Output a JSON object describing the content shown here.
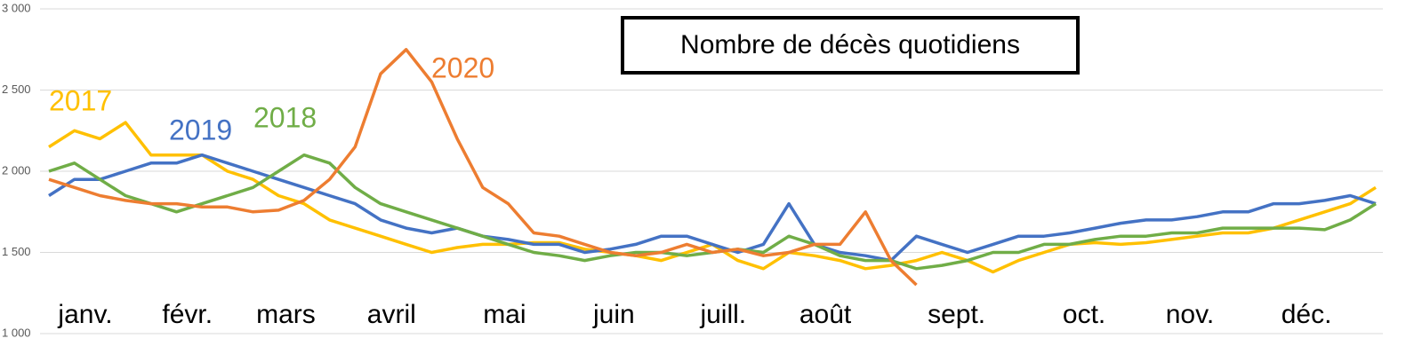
{
  "chart_data": {
    "type": "line",
    "title": "Nombre de décès quotidiens",
    "x": [
      1,
      8,
      15,
      22,
      29,
      36,
      43,
      50,
      57,
      64,
      71,
      78,
      85,
      92,
      99,
      106,
      113,
      120,
      127,
      134,
      141,
      148,
      155,
      162,
      169,
      176,
      183,
      190,
      197,
      204,
      211,
      218,
      225,
      232,
      239,
      246,
      253,
      260,
      267,
      274,
      281,
      288,
      295,
      302,
      309,
      316,
      323,
      330,
      337,
      344,
      351,
      358,
      365
    ],
    "xlim": [
      1,
      365
    ],
    "xticks": [
      {
        "value": 11,
        "label": "janv."
      },
      {
        "value": 39,
        "label": "févr."
      },
      {
        "value": 66,
        "label": "mars"
      },
      {
        "value": 95,
        "label": "avril"
      },
      {
        "value": 126,
        "label": "mai"
      },
      {
        "value": 156,
        "label": "juin"
      },
      {
        "value": 186,
        "label": "juill."
      },
      {
        "value": 214,
        "label": "août"
      },
      {
        "value": 250,
        "label": "sept."
      },
      {
        "value": 285,
        "label": "oct."
      },
      {
        "value": 314,
        "label": "nov."
      },
      {
        "value": 346,
        "label": "déc."
      }
    ],
    "ylim": [
      1000,
      3000
    ],
    "yticks": [
      {
        "value": 1000,
        "label": "1 000"
      },
      {
        "value": 1500,
        "label": "1 500"
      },
      {
        "value": 2000,
        "label": "2 000"
      },
      {
        "value": 2500,
        "label": "2 500"
      },
      {
        "value": 3000,
        "label": "3 000"
      }
    ],
    "grid": true,
    "series": [
      {
        "name": "2017",
        "color": "#FFC000",
        "values": [
          2150,
          2250,
          2200,
          2300,
          2100,
          2100,
          2100,
          2000,
          1950,
          1850,
          1800,
          1700,
          1650,
          1600,
          1550,
          1500,
          1530,
          1550,
          1550,
          1560,
          1560,
          1520,
          1500,
          1480,
          1450,
          1500,
          1550,
          1450,
          1400,
          1500,
          1480,
          1450,
          1400,
          1420,
          1450,
          1500,
          1450,
          1380,
          1450,
          1500,
          1550,
          1560,
          1550,
          1560,
          1580,
          1600,
          1620,
          1620,
          1650,
          1700,
          1750,
          1800,
          1900
        ]
      },
      {
        "name": "2019",
        "color": "#4472C4",
        "values": [
          1850,
          1950,
          1950,
          2000,
          2050,
          2050,
          2100,
          2050,
          2000,
          1950,
          1900,
          1850,
          1800,
          1700,
          1650,
          1620,
          1650,
          1600,
          1580,
          1550,
          1550,
          1500,
          1520,
          1550,
          1600,
          1600,
          1550,
          1500,
          1550,
          1800,
          1550,
          1500,
          1480,
          1450,
          1600,
          1550,
          1500,
          1550,
          1600,
          1600,
          1620,
          1650,
          1680,
          1700,
          1700,
          1720,
          1750,
          1750,
          1800,
          1800,
          1820,
          1850,
          1800
        ]
      },
      {
        "name": "2018",
        "color": "#70AD47",
        "values": [
          2000,
          2050,
          1950,
          1850,
          1800,
          1750,
          1800,
          1850,
          1900,
          2000,
          2100,
          2050,
          1900,
          1800,
          1750,
          1700,
          1650,
          1600,
          1550,
          1500,
          1480,
          1450,
          1480,
          1500,
          1500,
          1480,
          1500,
          1520,
          1500,
          1600,
          1550,
          1480,
          1450,
          1450,
          1400,
          1420,
          1450,
          1500,
          1500,
          1550,
          1550,
          1580,
          1600,
          1600,
          1620,
          1620,
          1650,
          1650,
          1650,
          1650,
          1640,
          1700,
          1800
        ]
      },
      {
        "name": "2020",
        "color": "#ED7D31",
        "values": [
          1950,
          1900,
          1850,
          1820,
          1800,
          1800,
          1780,
          1780,
          1750,
          1760,
          1820,
          1950,
          2150,
          2600,
          2750,
          2550,
          2200,
          1900,
          1800,
          1620,
          1600,
          1550,
          1500,
          1480,
          1500,
          1550,
          1500,
          1520,
          1480,
          1500,
          1550,
          1550,
          1750,
          1450,
          1300,
          null,
          null,
          null,
          null,
          null,
          null,
          null,
          null,
          null,
          null,
          null,
          null,
          null,
          null,
          null,
          null,
          null,
          null
        ]
      }
    ]
  }
}
